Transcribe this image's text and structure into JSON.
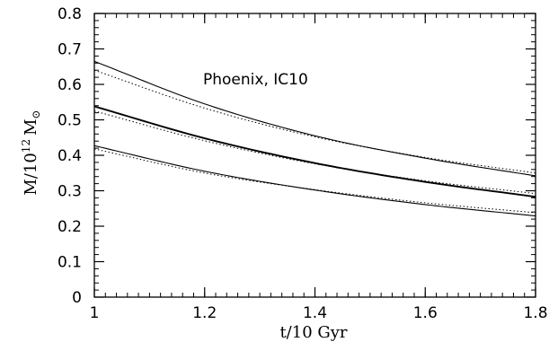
{
  "chart_data": {
    "type": "line",
    "title": "",
    "xlabel": "t/10 Gyr",
    "ylabel_parts": {
      "base": "M/10",
      "exp": "12",
      "sym": "M",
      "sub": "⊙"
    },
    "xlim": [
      1.0,
      1.8
    ],
    "ylim": [
      0.0,
      0.8
    ],
    "x_ticks": [
      "1",
      "1.2",
      "1.4",
      "1.6",
      "1.8"
    ],
    "y_ticks": [
      "0",
      "0.1",
      "0.2",
      "0.3",
      "0.4",
      "0.5",
      "0.6",
      "0.7",
      "0.8"
    ],
    "annotation": "Phoenix, IC10",
    "grid": false,
    "legend": "none",
    "series": [
      {
        "style": "solid",
        "x": [
          1.0,
          1.2,
          1.4,
          1.6,
          1.8
        ],
        "values": [
          0.665,
          0.545,
          0.455,
          0.392,
          0.342
        ]
      },
      {
        "style": "dotted",
        "x": [
          1.0,
          1.2,
          1.4,
          1.6,
          1.8
        ],
        "values": [
          0.64,
          0.533,
          0.452,
          0.394,
          0.35
        ]
      },
      {
        "style": "solid-bold",
        "x": [
          1.0,
          1.2,
          1.4,
          1.6,
          1.8
        ],
        "values": [
          0.538,
          0.448,
          0.378,
          0.325,
          0.283
        ]
      },
      {
        "style": "dotted",
        "x": [
          1.0,
          1.2,
          1.4,
          1.6,
          1.8
        ],
        "values": [
          0.525,
          0.441,
          0.376,
          0.328,
          0.292
        ]
      },
      {
        "style": "solid",
        "x": [
          1.0,
          1.2,
          1.4,
          1.6,
          1.8
        ],
        "values": [
          0.427,
          0.355,
          0.302,
          0.261,
          0.229
        ]
      },
      {
        "style": "dotted",
        "x": [
          1.0,
          1.2,
          1.4,
          1.6,
          1.8
        ],
        "values": [
          0.418,
          0.35,
          0.303,
          0.266,
          0.238
        ]
      }
    ]
  }
}
